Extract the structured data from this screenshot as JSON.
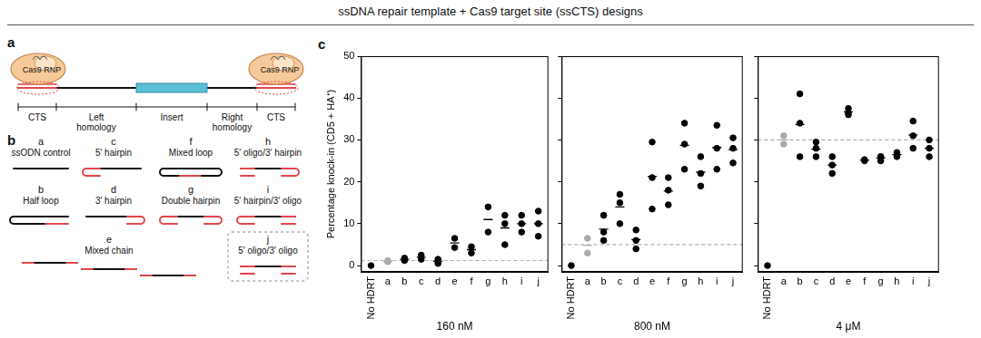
{
  "title": "ssDNA repair template + Cas9 target site (ssCTS) designs",
  "panel_a": {
    "label": "a",
    "rnp_label": "Cas9 RNP",
    "segments": [
      [
        "CTS"
      ],
      [
        "Left",
        "homology"
      ],
      [
        "Insert"
      ],
      [
        "Right",
        "homology"
      ],
      [
        "CTS"
      ]
    ]
  },
  "panel_b": {
    "label": "b",
    "designs": [
      {
        "id": "a",
        "name": "ssODN control"
      },
      {
        "id": "b",
        "name": "Half loop"
      },
      {
        "id": "c",
        "name": "5′ hairpin"
      },
      {
        "id": "d",
        "name": "3′ hairpin"
      },
      {
        "id": "e",
        "name": "Mixed chain"
      },
      {
        "id": "f",
        "name": "Mixed loop"
      },
      {
        "id": "g",
        "name": "Double hairpin"
      },
      {
        "id": "h",
        "name": "5′ oligo/3′ hairpin"
      },
      {
        "id": "i",
        "name": "5′ hairpin/3′ oligo"
      },
      {
        "id": "j",
        "name": "5′ oligo/3′ oligo"
      }
    ]
  },
  "panel_c_label": "c",
  "chart_data": [
    {
      "type": "scatter",
      "xlabel": "160 nM",
      "ylabel": "Percentage knock-in (CD5 + HA⁺)",
      "categories": [
        "No HDRT",
        "a",
        "b",
        "c",
        "d",
        "e",
        "f",
        "g",
        "h",
        "i",
        "j"
      ],
      "values": [
        [
          0
        ],
        [
          0.9,
          1.2
        ],
        [
          1.2,
          1.8
        ],
        [
          1.5,
          2.5
        ],
        [
          0.5,
          1.0,
          1.5
        ],
        [
          4.3,
          6.5
        ],
        [
          3.0,
          4.5
        ],
        [
          8.0,
          14.0
        ],
        [
          5.0,
          10.0,
          12.0
        ],
        [
          8.0,
          10.0,
          12.0
        ],
        [
          7.0,
          10.0,
          13.0
        ]
      ],
      "means": [
        null,
        1.0,
        1.5,
        2.0,
        1.0,
        5.4,
        3.8,
        11.0,
        9.0,
        10.0,
        10.0
      ],
      "colors": [
        "#000000",
        "#aaaaaa",
        "#000000",
        "#000000",
        "#000000",
        "#000000",
        "#000000",
        "#000000",
        "#000000",
        "#000000",
        "#000000"
      ],
      "reference_line": {
        "value": 1.2,
        "color": "#b0b0b0",
        "line_style": "dashed"
      },
      "ylim": [
        -1.5,
        50
      ],
      "yticks": [
        0,
        10,
        20,
        30,
        40,
        50
      ],
      "grid": false
    },
    {
      "type": "scatter",
      "xlabel": "800 nM",
      "categories": [
        "No HDRT",
        "a",
        "b",
        "c",
        "d",
        "e",
        "f",
        "g",
        "h",
        "i",
        "j"
      ],
      "values": [
        [
          0
        ],
        [
          3.0,
          6.5
        ],
        [
          6.0,
          8.0,
          12.0
        ],
        [
          10.0,
          15.0,
          17.0
        ],
        [
          4.0,
          6.0,
          8.5
        ],
        [
          13.5,
          21.0,
          29.5
        ],
        [
          14.5,
          18.0,
          21.0
        ],
        [
          23.0,
          29.0,
          34.0
        ],
        [
          19.0,
          22.0,
          26.0
        ],
        [
          23.0,
          28.0,
          33.5
        ],
        [
          24.5,
          28.0,
          30.5
        ]
      ],
      "means": [
        null,
        4.8,
        8.7,
        14.0,
        6.2,
        21.3,
        17.8,
        28.7,
        22.3,
        28.2,
        27.7
      ],
      "colors": [
        "#000000",
        "#aaaaaa",
        "#000000",
        "#000000",
        "#000000",
        "#000000",
        "#000000",
        "#000000",
        "#000000",
        "#000000",
        "#000000"
      ],
      "reference_line": {
        "value": 5.0,
        "color": "#b0b0b0",
        "line_style": "dashed"
      },
      "ylim": [
        -1.5,
        50
      ],
      "yticks": [
        0,
        10,
        20,
        30,
        40,
        50
      ],
      "grid": false,
      "tick_labels": "x"
    },
    {
      "type": "scatter",
      "xlabel": "4 μM",
      "categories": [
        "No HDRT",
        "a",
        "b",
        "c",
        "d",
        "e",
        "f",
        "g",
        "h",
        "i",
        "j"
      ],
      "values": [
        [
          0
        ],
        [
          29.0,
          31.0
        ],
        [
          26.0,
          34.0,
          41.0
        ],
        [
          26.0,
          28.0,
          29.5
        ],
        [
          22.0,
          24.0,
          26.0
        ],
        [
          36.0,
          36.5,
          37.5
        ],
        [
          25.0,
          25.3
        ],
        [
          25.0,
          26.0,
          26.0
        ],
        [
          26.0,
          27.0
        ],
        [
          28.0,
          31.0,
          34.5
        ],
        [
          26.0,
          28.0,
          30.0
        ]
      ],
      "means": [
        null,
        30.0,
        33.7,
        27.8,
        24.0,
        36.7,
        25.2,
        25.7,
        26.5,
        31.2,
        28.0
      ],
      "colors": [
        "#000000",
        "#aaaaaa",
        "#000000",
        "#000000",
        "#000000",
        "#000000",
        "#000000",
        "#000000",
        "#000000",
        "#000000",
        "#000000"
      ],
      "reference_line": {
        "value": 30.0,
        "color": "#b0b0b0",
        "line_style": "dashed"
      },
      "ylim": [
        -1.5,
        50
      ],
      "yticks": [
        0,
        10,
        20,
        30,
        40,
        50
      ],
      "grid": false,
      "tick_labels": "x"
    }
  ]
}
